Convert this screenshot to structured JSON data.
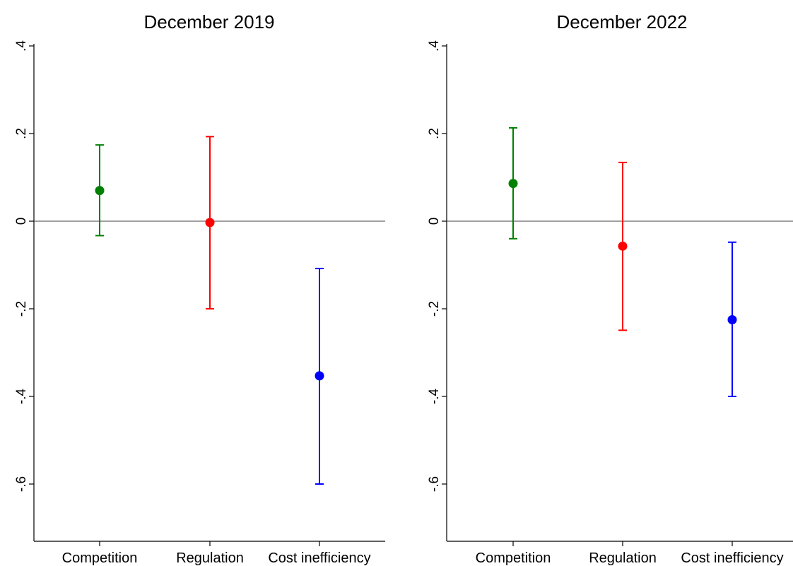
{
  "chart_data": [
    {
      "type": "scatter",
      "title": "December 2019",
      "xlabel": "",
      "ylabel": "",
      "categories": [
        "Competition",
        "Regulation",
        "Cost inefficiency"
      ],
      "yticks": [
        ".4",
        ".2",
        "0",
        "-.2",
        "-.4",
        "-.6"
      ],
      "ylim": [
        -0.72,
        0.42
      ],
      "reference_line": 0,
      "grid": false,
      "points": [
        {
          "category": "Competition",
          "estimate": 0.07,
          "ci_low": -0.033,
          "ci_high": 0.174,
          "color": "#008000"
        },
        {
          "category": "Regulation",
          "estimate": -0.003,
          "ci_low": -0.2,
          "ci_high": 0.193,
          "color": "#ff0000"
        },
        {
          "category": "Cost inefficiency",
          "estimate": -0.353,
          "ci_low": -0.6,
          "ci_high": -0.108,
          "color": "#0000ff"
        }
      ]
    },
    {
      "type": "scatter",
      "title": "December 2022",
      "xlabel": "",
      "ylabel": "",
      "categories": [
        "Competition",
        "Regulation",
        "Cost inefficiency"
      ],
      "yticks": [
        ".4",
        ".2",
        "0",
        "-.2",
        "-.4",
        "-.6"
      ],
      "ylim": [
        -0.72,
        0.42
      ],
      "reference_line": 0,
      "grid": false,
      "points": [
        {
          "category": "Competition",
          "estimate": 0.086,
          "ci_low": -0.04,
          "ci_high": 0.213,
          "color": "#008000"
        },
        {
          "category": "Regulation",
          "estimate": -0.057,
          "ci_low": -0.249,
          "ci_high": 0.134,
          "color": "#ff0000"
        },
        {
          "category": "Cost inefficiency",
          "estimate": -0.225,
          "ci_low": -0.4,
          "ci_high": -0.048,
          "color": "#0000ff"
        }
      ]
    }
  ]
}
